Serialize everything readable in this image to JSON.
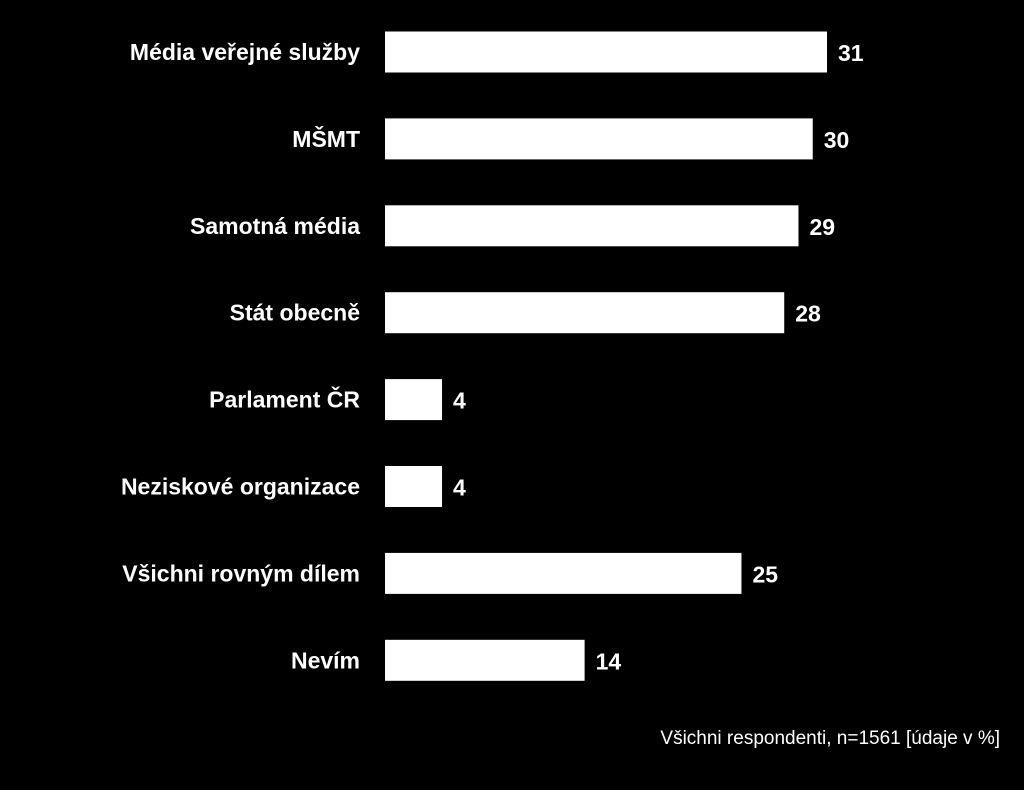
{
  "chart_data": {
    "type": "bar",
    "orientation": "horizontal",
    "categories": [
      "Média veřejné služby",
      "MŠMT",
      "Samotná média",
      "Stát obecně",
      "Parlament ČR",
      "Neziskové organizace",
      "Všichni rovným dílem",
      "Nevím"
    ],
    "values": [
      31,
      30,
      29,
      28,
      4,
      4,
      25,
      14
    ],
    "value_labels": [
      "31",
      "30",
      "29",
      "28",
      "4",
      "4",
      "25",
      "14"
    ],
    "unit": "%",
    "xlim": [
      0,
      31
    ],
    "grid": false,
    "legend": "none",
    "bar_color": "#ffffff",
    "background_color": "#000000",
    "text_color": "#ffffff"
  },
  "footnote": "Všichni respondenti, n=1561 [údaje v %]"
}
